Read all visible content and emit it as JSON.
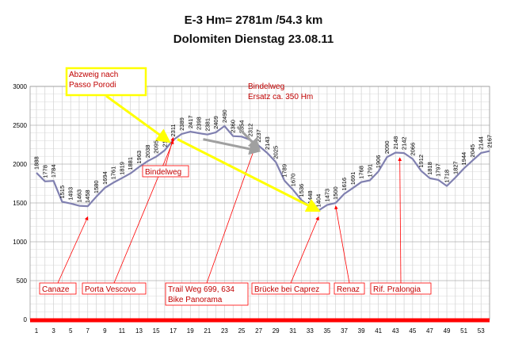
{
  "header": {
    "line1": "E-3 Hm= 2781m   /54.3 km",
    "line2": "Dolomiten  Dienstag 23.08.11"
  },
  "chart_data": {
    "type": "line",
    "title": "E-3 Hm= 2781m /54.3 km — Dolomiten Dienstag 23.08.11",
    "xlabel": "",
    "ylabel": "",
    "ylim": [
      0,
      3000
    ],
    "yticks": [
      0,
      500,
      1000,
      1500,
      2000,
      2500,
      3000
    ],
    "xlim": [
      1,
      54
    ],
    "xticks": [
      1,
      3,
      5,
      7,
      9,
      11,
      13,
      15,
      17,
      19,
      21,
      23,
      25,
      27,
      29,
      31,
      33,
      35,
      37,
      39,
      41,
      43,
      45,
      47,
      49,
      51,
      53
    ],
    "grid": true,
    "x": [
      1,
      2,
      3,
      4,
      5,
      6,
      7,
      8,
      9,
      10,
      11,
      12,
      13,
      14,
      15,
      16,
      17,
      18,
      19,
      20,
      21,
      22,
      23,
      24,
      25,
      26,
      27,
      28,
      29,
      30,
      31,
      32,
      33,
      34,
      35,
      36,
      37,
      38,
      39,
      40,
      41,
      42,
      43,
      44,
      45,
      46,
      47,
      48,
      49,
      50,
      51,
      52,
      53,
      54
    ],
    "y": [
      1888,
      1778,
      1784,
      1515,
      1493,
      1463,
      1458,
      1580,
      1694,
      1761,
      1819,
      1881,
      1963,
      2038,
      2095,
      2178,
      2311,
      2389,
      2417,
      2398,
      2381,
      2409,
      2490,
      2360,
      2354,
      2312,
      2237,
      2143,
      2025,
      1789,
      1670,
      1536,
      1448,
      1404,
      1473,
      1500,
      1616,
      1691,
      1768,
      1791,
      1906,
      2090,
      2148,
      2142,
      2066,
      1912,
      1818,
      1797,
      1718,
      1827,
      1944,
      2045,
      2144,
      2167
    ],
    "labels": [
      "1888",
      "1778",
      "1784",
      "1515",
      "1493",
      "1463",
      "1458",
      "1580",
      "1694",
      "1761",
      "1819",
      "1881",
      "1963",
      "2038",
      "2095",
      "2178",
      "2311",
      "2389",
      "2417",
      "2398",
      "2381",
      "2409",
      "2490",
      "2360",
      "2354",
      "2312",
      "2237",
      "2143",
      "2025",
      "1789",
      "1670",
      "1536",
      "1448",
      "1404",
      "1473",
      "1500",
      "1616",
      "1691",
      "1768",
      "1791",
      "1906",
      "2090",
      "2148",
      "2142",
      "2066",
      "1912",
      "1818",
      "1797",
      "1718",
      "1827",
      "1944",
      "2045",
      "2144",
      "2167"
    ],
    "colors": {
      "line": "#8080b0",
      "baseline": "#ff0000",
      "annotation": "#ff0000",
      "highlight": "#ffff00",
      "grey_arrow": "#a0a0a0"
    },
    "annotations": [
      {
        "text": "Canaze",
        "target_x": 7,
        "target_y": 1320,
        "style": "red-box"
      },
      {
        "text": "Porta Vescovo",
        "target_x": 17,
        "target_y": 2300,
        "style": "red-box"
      },
      {
        "text": "Bindelweg",
        "target_x": 17,
        "target_y": 2340,
        "style": "red-box"
      },
      {
        "text": "Trail Weg 699, 634\nBike Panorama",
        "target_x": 26.5,
        "target_y": 2200,
        "style": "red-box"
      },
      {
        "text": "Brücke bei Caprez",
        "target_x": 34,
        "target_y": 1320,
        "style": "red-box"
      },
      {
        "text": "Renaz",
        "target_x": 36,
        "target_y": 1460,
        "style": "red-box"
      },
      {
        "text": "Rif. Pralongia",
        "target_x": 43.5,
        "target_y": 2080,
        "style": "red-box"
      },
      {
        "text": "Abzweig nach\nPasso Porodi",
        "target_x": 15.5,
        "target_y": 2300,
        "style": "yellow-box"
      },
      {
        "text": "Bindelweg\nErsatz ca. 350 Hm",
        "target_x": 25,
        "target_y": 2300,
        "style": "plain"
      }
    ]
  }
}
